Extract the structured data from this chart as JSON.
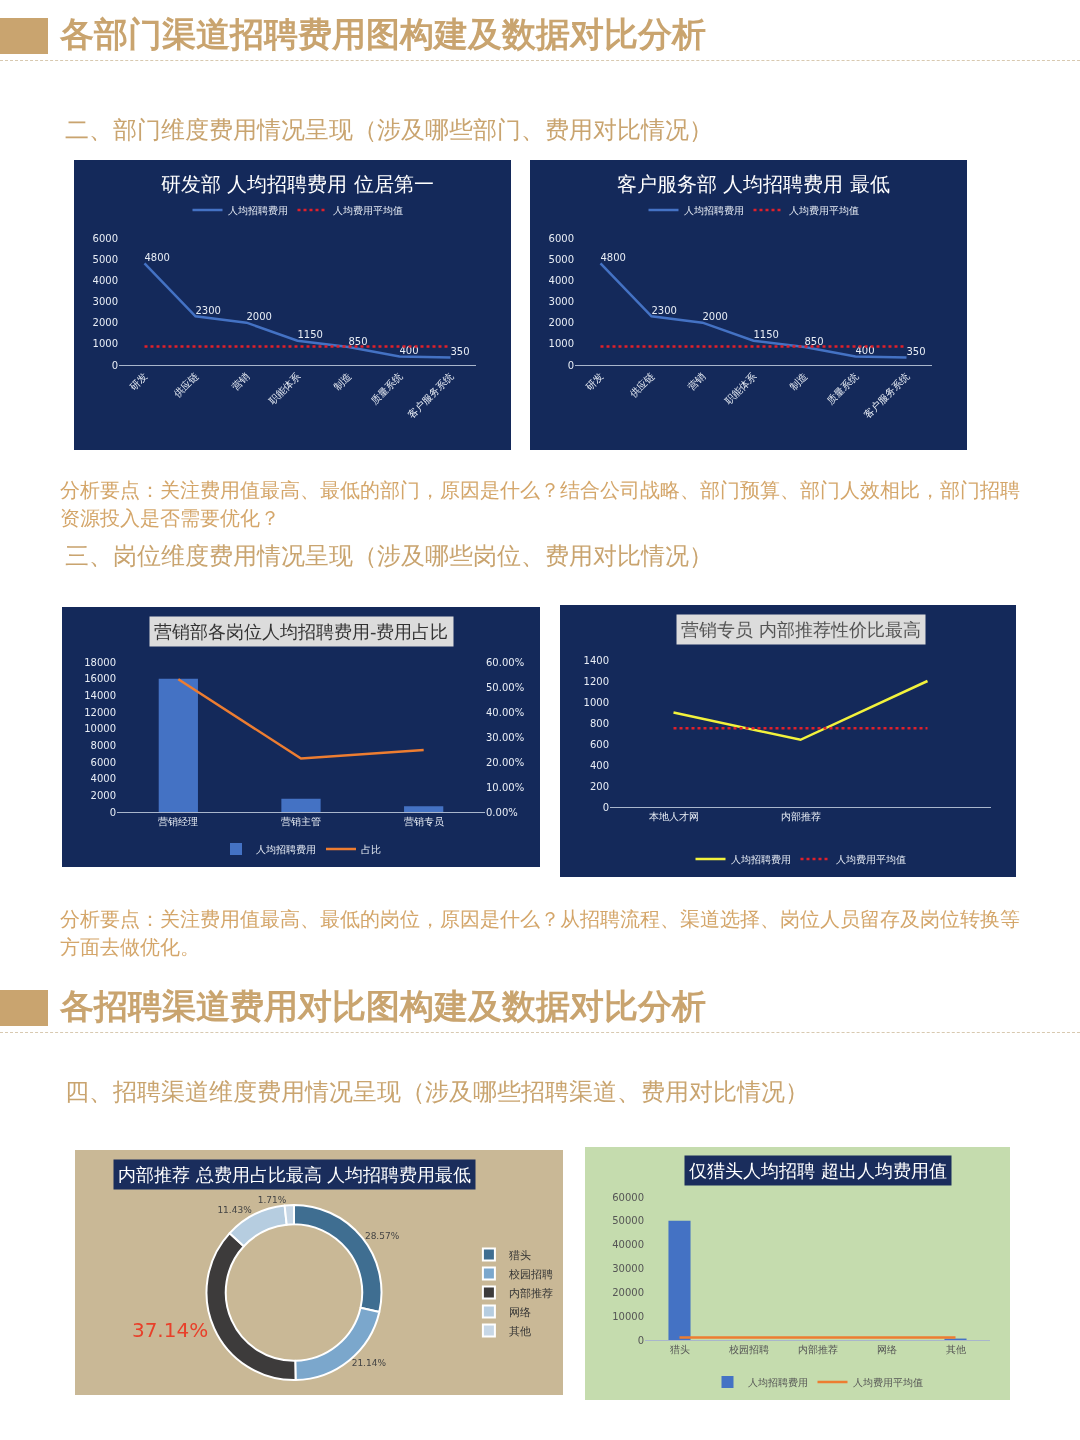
{
  "chart_data": [
    {
      "type": "other",
      "title": "各部门渠道招聘费用图构建及数据对比分析",
      "subtitle": "二、部门维度费用情况呈现（涉及哪些部门、费用对比情况）"
    },
    {
      "type": "line",
      "title": "研发部 人均招聘费用 位居第一",
      "categories": [
        "研发",
        "供应链",
        "营销",
        "职能体系",
        "制造",
        "质量系统",
        "客户服务系统"
      ],
      "series": [
        {
          "name": "人均招聘费用",
          "color": "#4472c4",
          "values": [
            4800,
            2300,
            2000,
            1150,
            850,
            400,
            350
          ],
          "value_labels": [
            "4800",
            "2300",
            "2000",
            "1150",
            "850",
            "400",
            "350"
          ]
        },
        {
          "name": "人均费用平均值",
          "color": "#e0202a",
          "line_style": "dotted",
          "values": [
            870,
            870,
            870,
            870,
            870,
            870,
            870
          ]
        }
      ],
      "ylim": [
        0,
        6000
      ],
      "yticks": [
        0,
        1000,
        2000,
        3000,
        4000,
        5000,
        6000
      ],
      "legend": "top"
    },
    {
      "type": "line",
      "title": "客户服务部 人均招聘费用 最低",
      "categories": [
        "研发",
        "供应链",
        "营销",
        "职能体系",
        "制造",
        "质量系统",
        "客户服务系统"
      ],
      "series": [
        {
          "name": "人均招聘费用",
          "color": "#4472c4",
          "values": [
            4800,
            2300,
            2000,
            1150,
            850,
            400,
            350
          ],
          "value_labels": [
            "4800",
            "2300",
            "2000",
            "1150",
            "850",
            "400",
            "350"
          ]
        },
        {
          "name": "人均费用平均值",
          "color": "#e0202a",
          "line_style": "dotted",
          "values": [
            870,
            870,
            870,
            870,
            870,
            870,
            870
          ]
        }
      ],
      "ylim": [
        0,
        6000
      ],
      "yticks": [
        0,
        1000,
        2000,
        3000,
        4000,
        5000,
        6000
      ],
      "legend": "top"
    },
    {
      "type": "other",
      "annotations": [
        "分析要点：关注费用值最高、最低的部门，原因是什么？结合公司战略、部门预算、部门人效相比，部门招聘资源投入是否需要优化？"
      ]
    },
    {
      "type": "other",
      "subtitle": "三、岗位维度费用情况呈现（涉及哪些岗位、费用对比情况）"
    },
    {
      "type": "bar",
      "title": "营销部各岗位人均招聘费用-费用占比",
      "categories": [
        "营销经理",
        "营销主管",
        "营销专员"
      ],
      "series": [
        {
          "name": "人均招聘费用",
          "color": "#4472c4",
          "values": [
            16000,
            1600,
            700
          ]
        },
        {
          "name": "占比",
          "type": "line",
          "axis": "y2",
          "color": "#ed7d31",
          "values": [
            53.1,
            21.4,
            24.8
          ]
        }
      ],
      "ylim": [
        0,
        18000
      ],
      "yticks": [
        0,
        2000,
        4000,
        6000,
        8000,
        10000,
        12000,
        14000,
        16000,
        18000
      ],
      "y2lim": [
        0,
        60
      ],
      "y2ticks": [
        {
          "value": 0,
          "label": "0.00%"
        },
        {
          "value": 10,
          "label": "10.00%"
        },
        {
          "value": 20,
          "label": "20.00%"
        },
        {
          "value": 30,
          "label": "30.00%"
        },
        {
          "value": 40,
          "label": "40.00%"
        },
        {
          "value": 50,
          "label": "50.00%"
        },
        {
          "value": 60,
          "label": "60.00%"
        }
      ],
      "legend": "bottom"
    },
    {
      "type": "line",
      "title": "营销专员 内部推荐性价比最高",
      "categories": [
        "本地人才网",
        "内部推荐",
        null
      ],
      "series": [
        {
          "name": "人均招聘费用",
          "color": "#f2f23c",
          "values": [
            900,
            640,
            1200
          ]
        },
        {
          "name": "人均费用平均值",
          "color": "#e0202a",
          "line_style": "dotted",
          "values": [
            750,
            750,
            750
          ]
        }
      ],
      "ylim": [
        0,
        1400
      ],
      "yticks": [
        0,
        200,
        400,
        600,
        800,
        1000,
        1200,
        1400
      ],
      "legend": "bottom"
    },
    {
      "type": "other",
      "annotations": [
        "分析要点：关注费用值最高、最低的岗位，原因是什么？从招聘流程、渠道选择、岗位人员留存及岗位转换等方面去做优化。"
      ]
    },
    {
      "type": "other",
      "title": "各招聘渠道费用对比图构建及数据对比分析",
      "subtitle": "四、招聘渠道维度费用情况呈现（涉及哪些招聘渠道、费用对比情况）"
    },
    {
      "type": "donut",
      "title": "内部推荐 总费用占比最高 人均招聘费用最低",
      "categories": [
        "猎头",
        "校园招聘",
        "内部推荐",
        "网络",
        "其他"
      ],
      "values": [
        28.57,
        21.14,
        37.14,
        11.43,
        1.71
      ],
      "value_labels": [
        "28.57%",
        "21.14%",
        "37.14%",
        "11.43%",
        "1.71%"
      ],
      "colors": [
        "#3f6e91",
        "#7ba7cc",
        "#3d3b3b",
        "#b6cde0",
        "#c7d7e6"
      ],
      "legend": "right"
    },
    {
      "type": "bar",
      "title": "仅猎头人均招聘 超出人均费用值",
      "categories": [
        "猎头",
        "校园招聘",
        "内部推荐",
        "网络",
        "其他"
      ],
      "series": [
        {
          "name": "人均招聘费用",
          "color": "#4472c4",
          "values": [
            50000,
            null,
            null,
            null,
            600
          ]
        },
        {
          "name": "人均费用平均值",
          "type": "line",
          "color": "#ed7d31",
          "values": [
            1000,
            1000,
            1000,
            1000,
            1000
          ]
        }
      ],
      "ylim": [
        0,
        60000
      ],
      "yticks": [
        0,
        10000,
        20000,
        30000,
        40000,
        50000,
        60000
      ],
      "legend": "bottom"
    }
  ]
}
